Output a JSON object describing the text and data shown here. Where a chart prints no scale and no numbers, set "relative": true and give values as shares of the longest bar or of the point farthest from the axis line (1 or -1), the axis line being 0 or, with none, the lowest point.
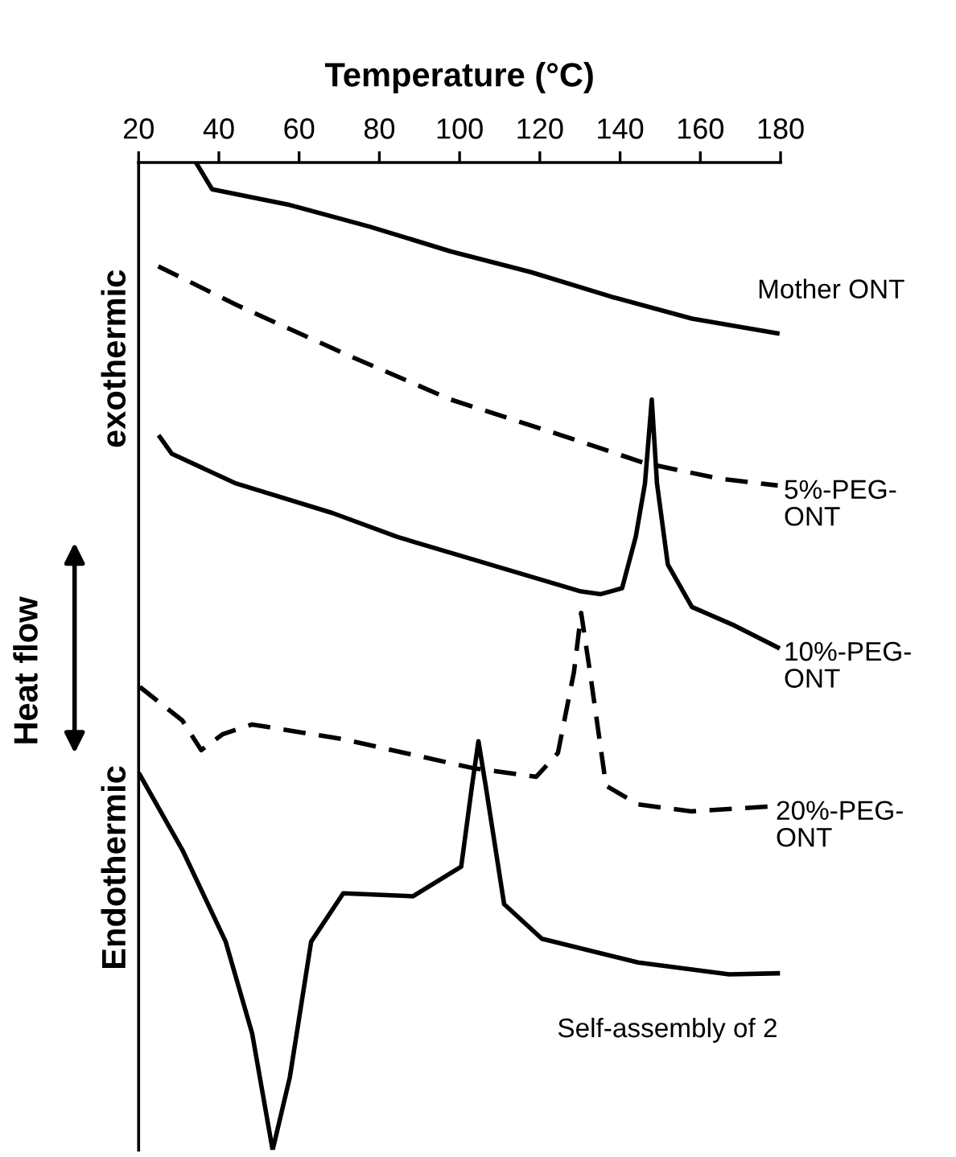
{
  "chart_data": {
    "type": "line",
    "relative": true,
    "xlabel": "Temperature (°C)",
    "ylabel": "Heat flow",
    "annotations": [
      "exothermic",
      "Endothermic"
    ],
    "xlim": [
      20,
      180
    ],
    "xticks": [
      20,
      40,
      60,
      80,
      100,
      120,
      140,
      160,
      180
    ],
    "grid": false,
    "legend": false,
    "marker": "none",
    "series": [
      {
        "name": "Mother ONT",
        "color": "#000000",
        "line_style": "solid",
        "x": [
          34.3,
          38.3,
          57.7,
          77.7,
          97.8,
          117.8,
          137.9,
          157.9,
          179.2
        ],
        "values": [
          1.0,
          0.973,
          0.957,
          0.935,
          0.91,
          0.889,
          0.864,
          0.842,
          0.827
        ]
      },
      {
        "name": "5%-PEG-\nONT",
        "color": "#000000",
        "line_style": "dashed",
        "x": [
          24.9,
          44.3,
          71.0,
          97.8,
          124.5,
          145.9,
          164.6,
          179.3
        ],
        "values": [
          0.895,
          0.856,
          0.807,
          0.76,
          0.725,
          0.696,
          0.68,
          0.673
        ]
      },
      {
        "name": "10%-PEG-\nONT",
        "color": "#000000",
        "line_style": "solid",
        "x": [
          25.3,
          28.3,
          44.3,
          68.4,
          84.4,
          129.9,
          135.2,
          140.5,
          143.9,
          146.2,
          147.9,
          149.2,
          151.9,
          157.9,
          168.6,
          179.3
        ],
        "values": [
          0.722,
          0.705,
          0.675,
          0.645,
          0.621,
          0.566,
          0.563,
          0.569,
          0.621,
          0.675,
          0.76,
          0.675,
          0.593,
          0.55,
          0.531,
          0.509
        ]
      },
      {
        "name": "20%-PEG-\nONT",
        "color": "#000000",
        "line_style": "dashed",
        "x": [
          20.3,
          30.9,
          35.6,
          40.9,
          48.3,
          71.0,
          103.1,
          119.1,
          124.5,
          128.5,
          130.3,
          132.5,
          136.5,
          144.5,
          157.9,
          177.3
        ],
        "values": [
          0.469,
          0.435,
          0.405,
          0.421,
          0.431,
          0.416,
          0.387,
          0.378,
          0.402,
          0.484,
          0.544,
          0.484,
          0.369,
          0.35,
          0.343,
          0.348
        ]
      },
      {
        "name": "Self-assembly of 2",
        "color": "#000000",
        "line_style": "solid",
        "x": [
          20.3,
          30.9,
          41.7,
          48.3,
          53.4,
          57.7,
          63.0,
          71.0,
          88.4,
          100.4,
          103.1,
          104.7,
          106.5,
          111.1,
          120.5,
          144.5,
          167.2,
          179.3
        ],
        "values": [
          0.38,
          0.304,
          0.211,
          0.118,
          0.0,
          0.074,
          0.211,
          0.26,
          0.257,
          0.287,
          0.369,
          0.414,
          0.369,
          0.249,
          0.214,
          0.19,
          0.178,
          0.179
        ]
      }
    ]
  }
}
